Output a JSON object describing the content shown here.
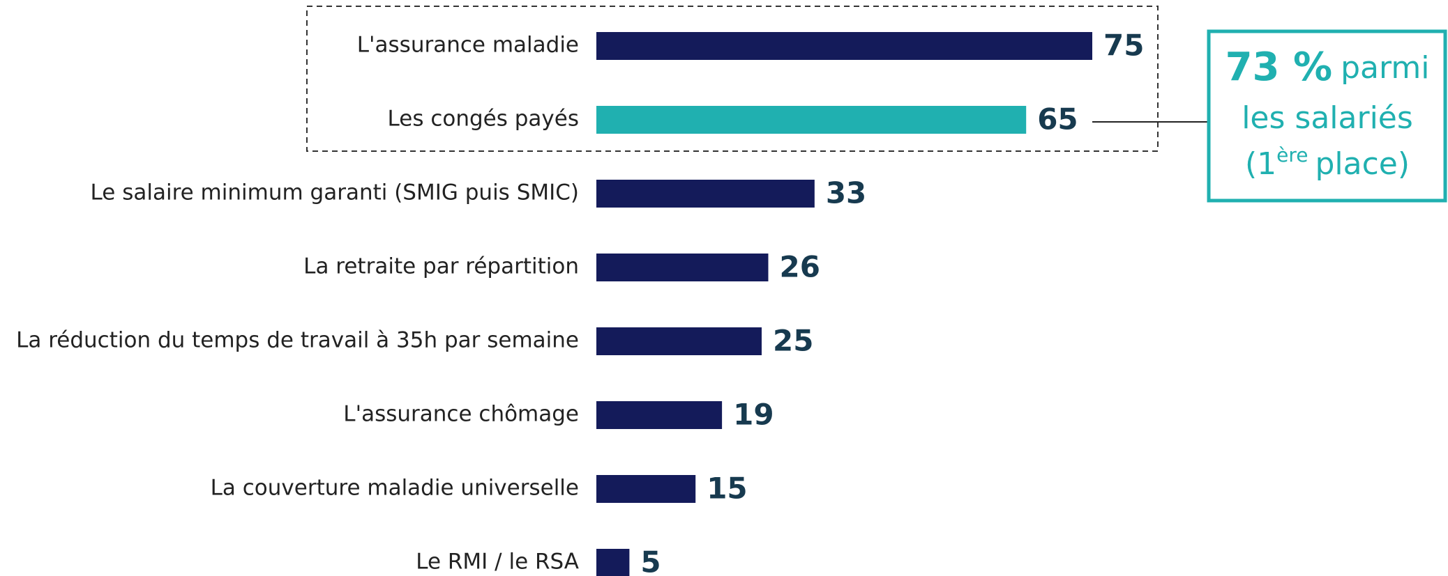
{
  "chart_data": {
    "type": "bar",
    "orientation": "horizontal",
    "categories": [
      "L'assurance maladie",
      "Les congés payés",
      "Le salaire minimum garanti (SMIG puis SMIC)",
      "La retraite par répartition",
      "La réduction du temps de travail à 35h par semaine",
      "L'assurance chômage",
      "La couverture maladie universelle",
      "Le RMI / le RSA"
    ],
    "values": [
      75,
      65,
      33,
      26,
      25,
      19,
      15,
      5
    ],
    "colors": [
      "#141b5a",
      "#20b0b0",
      "#141b5a",
      "#141b5a",
      "#141b5a",
      "#141b5a",
      "#141b5a",
      "#141b5a"
    ],
    "annotation": {
      "highlight": "73 %",
      "line1": "parmi",
      "line2": "les salariés",
      "line3_start": "(1",
      "line3_sup": "ère",
      "line3_end": "place)"
    }
  }
}
